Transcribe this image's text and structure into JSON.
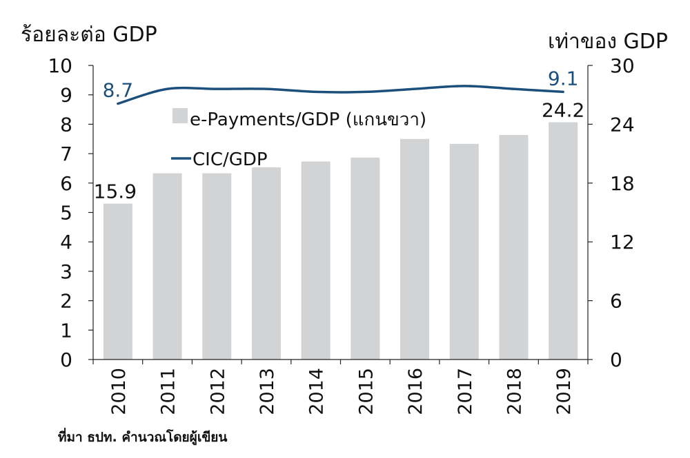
{
  "chart_data": {
    "type": "bar",
    "categories": [
      "2010",
      "2011",
      "2012",
      "2013",
      "2014",
      "2015",
      "2016",
      "2017",
      "2018",
      "2019"
    ],
    "series": [
      {
        "name": "e-Payments/GDP (แกนขวา)",
        "type": "bar",
        "axis": "right",
        "color": "#d2d3d4",
        "values": [
          15.9,
          19.0,
          19.0,
          19.6,
          20.2,
          20.6,
          22.5,
          22.0,
          22.9,
          24.2
        ]
      },
      {
        "name": "CIC/GDP",
        "type": "line",
        "axis": "left",
        "color": "#1b4f7c",
        "values": [
          8.7,
          9.2,
          9.2,
          9.2,
          9.1,
          9.1,
          9.2,
          9.3,
          9.2,
          9.1
        ]
      }
    ],
    "left_axis": {
      "label": "ร้อยละต่อ GDP",
      "ylim": [
        0,
        10
      ],
      "ticks": [
        "0",
        "1",
        "2",
        "3",
        "4",
        "5",
        "6",
        "7",
        "8",
        "9",
        "10"
      ]
    },
    "right_axis": {
      "label": "เท่าของ GDP",
      "ylim": [
        0,
        30
      ],
      "ticks": [
        "0",
        "6",
        "12",
        "18",
        "24",
        "30"
      ]
    },
    "data_labels": [
      {
        "text": "8.7",
        "series": "CIC/GDP",
        "category": "2010",
        "color": "#1b4f7c"
      },
      {
        "text": "9.1",
        "series": "CIC/GDP",
        "category": "2019",
        "color": "#1b4f7c"
      },
      {
        "text": "15.9",
        "series": "e-Payments/GDP (แกนขวา)",
        "category": "2010",
        "color": "#111111"
      },
      {
        "text": "24.2",
        "series": "e-Payments/GDP (แกนขวา)",
        "category": "2019",
        "color": "#111111"
      }
    ],
    "legend_position": "top-center"
  },
  "source_note": "ที่มา ธปท. คำนวณโดยผู้เขียน"
}
